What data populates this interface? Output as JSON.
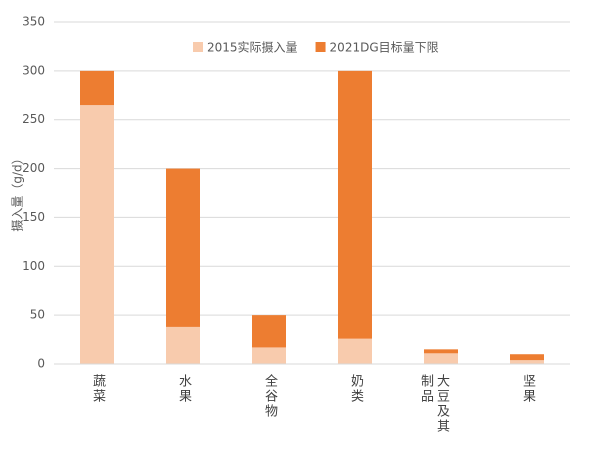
{
  "chart_data": {
    "type": "bar",
    "overlap": true,
    "y_label": "摄入量（g/d）",
    "categories": [
      "蔬菜",
      "水果",
      "全谷物",
      "奶类",
      "大豆及其制品",
      "坚果"
    ],
    "series": [
      {
        "name": "2015实际摄入量",
        "color": "#f8cbad",
        "values": [
          265,
          38,
          17,
          26,
          11,
          4
        ]
      },
      {
        "name": "2021DG目标量下限",
        "color": "#ed7d31",
        "values": [
          300,
          200,
          50,
          300,
          15,
          10
        ]
      }
    ],
    "ylim": [
      0,
      350
    ],
    "yticks": [
      0,
      50,
      100,
      150,
      200,
      250,
      300,
      350
    ],
    "grid": true,
    "legend": "top"
  }
}
